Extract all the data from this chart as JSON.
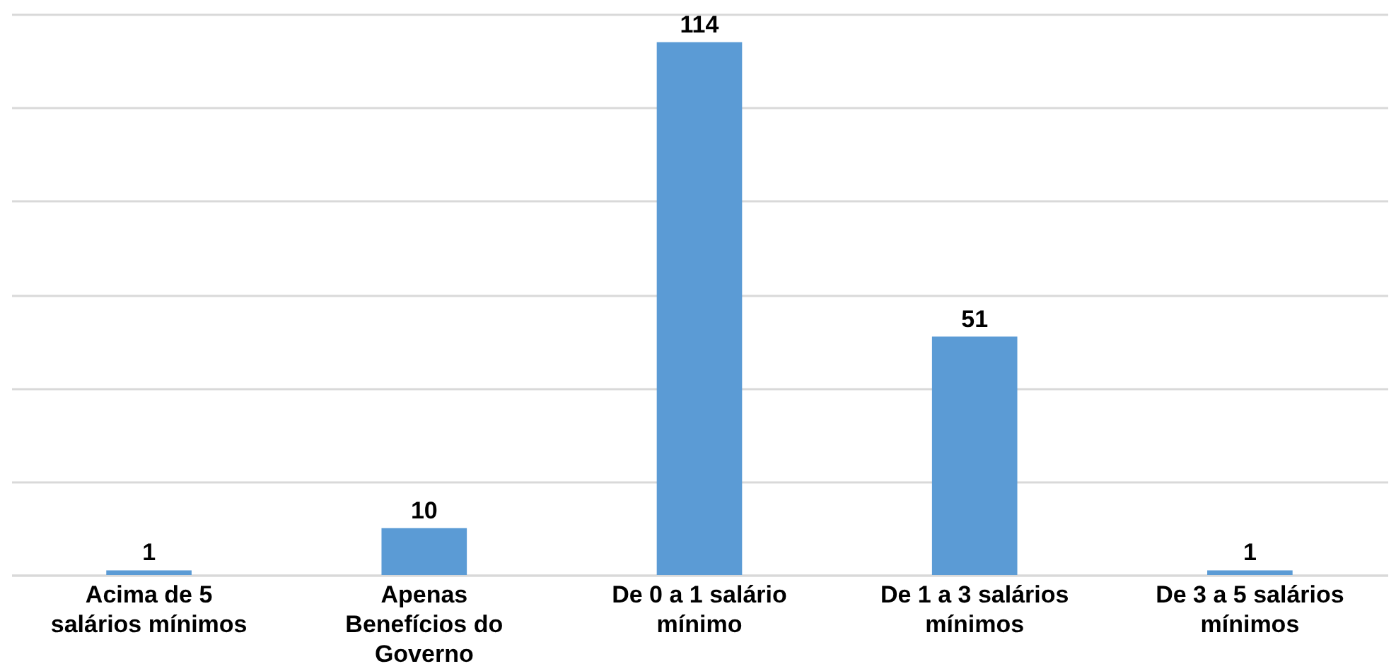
{
  "chart_data": {
    "type": "bar",
    "categories": [
      "Acima de 5 salários mínimos",
      "Apenas Benefícios do Governo",
      "De 0 a 1 salário mínimo",
      "De 1 a 3 salários mínimos",
      "De 3 a 5 salários mínimos"
    ],
    "values": [
      1,
      10,
      114,
      51,
      1
    ],
    "color": "#5b9bd5",
    "data_labels": true,
    "grid": "y",
    "tick_labels": "x",
    "ylim": [
      0,
      120
    ],
    "yticks": [
      {
        "value": 0,
        "label": null
      },
      {
        "value": 20,
        "label": null
      },
      {
        "value": 40,
        "label": null
      },
      {
        "value": 60,
        "label": null
      },
      {
        "value": 80,
        "label": null
      },
      {
        "value": 100,
        "label": null
      },
      {
        "value": 120,
        "label": null
      }
    ]
  }
}
